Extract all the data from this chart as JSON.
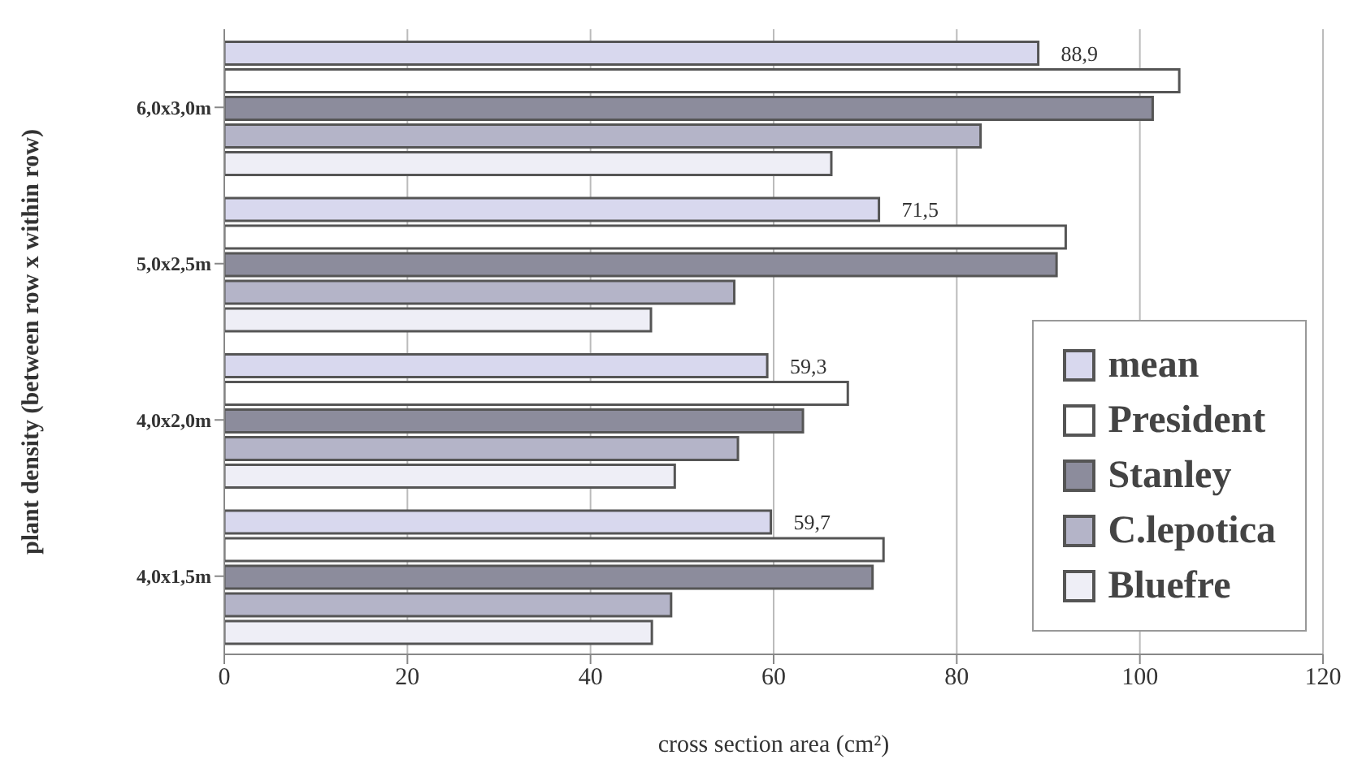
{
  "chart_data": {
    "type": "bar",
    "orientation": "horizontal",
    "xlabel": "cross section area (cm²)",
    "ylabel": "plant density (between row x within row)",
    "categories": [
      "6,0x3,0m",
      "5,0x2,5m",
      "4,0x2,0m",
      "4,0x1,5m"
    ],
    "series": [
      {
        "name": "mean",
        "color": "#d8d8ee",
        "values": [
          88.9,
          71.5,
          59.3,
          59.7
        ],
        "value_labels": [
          "88,9",
          "71,5",
          "59,3",
          "59,7"
        ]
      },
      {
        "name": "President",
        "color": "#ffffff",
        "values": [
          104.3,
          91.9,
          68.1,
          72.0
        ]
      },
      {
        "name": "Stanley",
        "color": "#8c8c9c",
        "values": [
          101.4,
          90.9,
          63.2,
          70.8
        ]
      },
      {
        "name": "C.lepotica",
        "color": "#b4b4c8",
        "values": [
          82.6,
          55.7,
          56.1,
          48.8
        ]
      },
      {
        "name": "Bluefre",
        "color": "#eeeef6",
        "values": [
          66.3,
          46.6,
          49.2,
          46.7
        ]
      }
    ],
    "xlim": [
      0,
      120
    ],
    "xticks": [
      0,
      20,
      40,
      60,
      80,
      100,
      120
    ],
    "grid": "x",
    "legend": "bottom right"
  }
}
